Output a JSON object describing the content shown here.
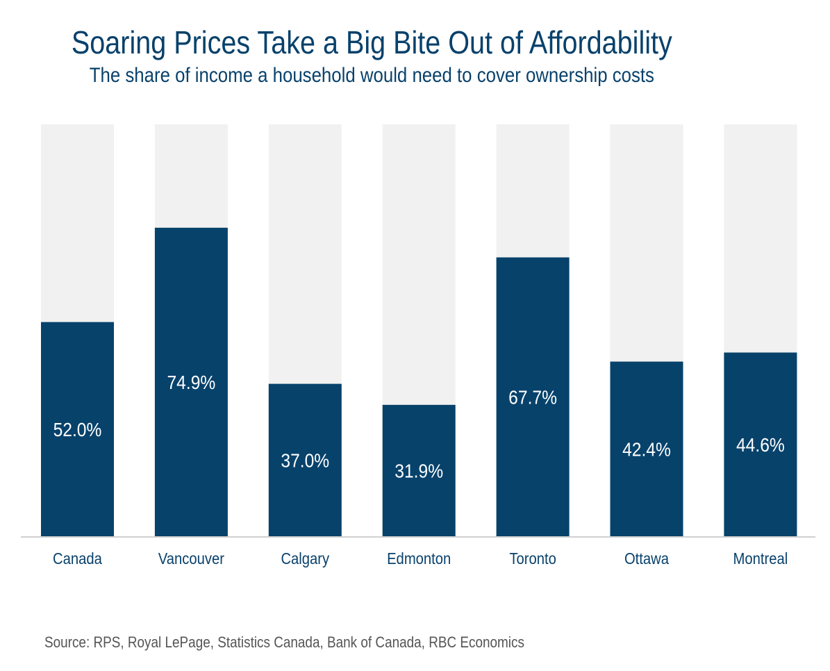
{
  "chart_data": {
    "type": "bar",
    "title": "Soaring Prices Take a Big Bite Out of Affordability",
    "subtitle": "The share of income a household would need to cover ownership costs",
    "categories": [
      "Canada",
      "Vancouver",
      "Calgary",
      "Edmonton",
      "Toronto",
      "Ottawa",
      "Montreal"
    ],
    "values": [
      52.0,
      74.9,
      37.0,
      31.9,
      67.7,
      42.4,
      44.6
    ],
    "value_labels": [
      "52.0%",
      "74.9%",
      "37.0%",
      "31.9%",
      "67.7%",
      "42.4%",
      "44.6%"
    ],
    "ylim": [
      0,
      100
    ],
    "xlabel": "",
    "ylabel": "",
    "background_track": true,
    "grid": false,
    "legend": "none",
    "source": "Source: RPS, Royal LePage, Statistics Canada, Bank of Canada, RBC Economics",
    "colors": {
      "bar": "#07426b",
      "track": "#f1f1f1",
      "axis": "#d0d0d0",
      "title": "#08416b",
      "label_text": "#ffffff",
      "source": "#555555"
    }
  }
}
